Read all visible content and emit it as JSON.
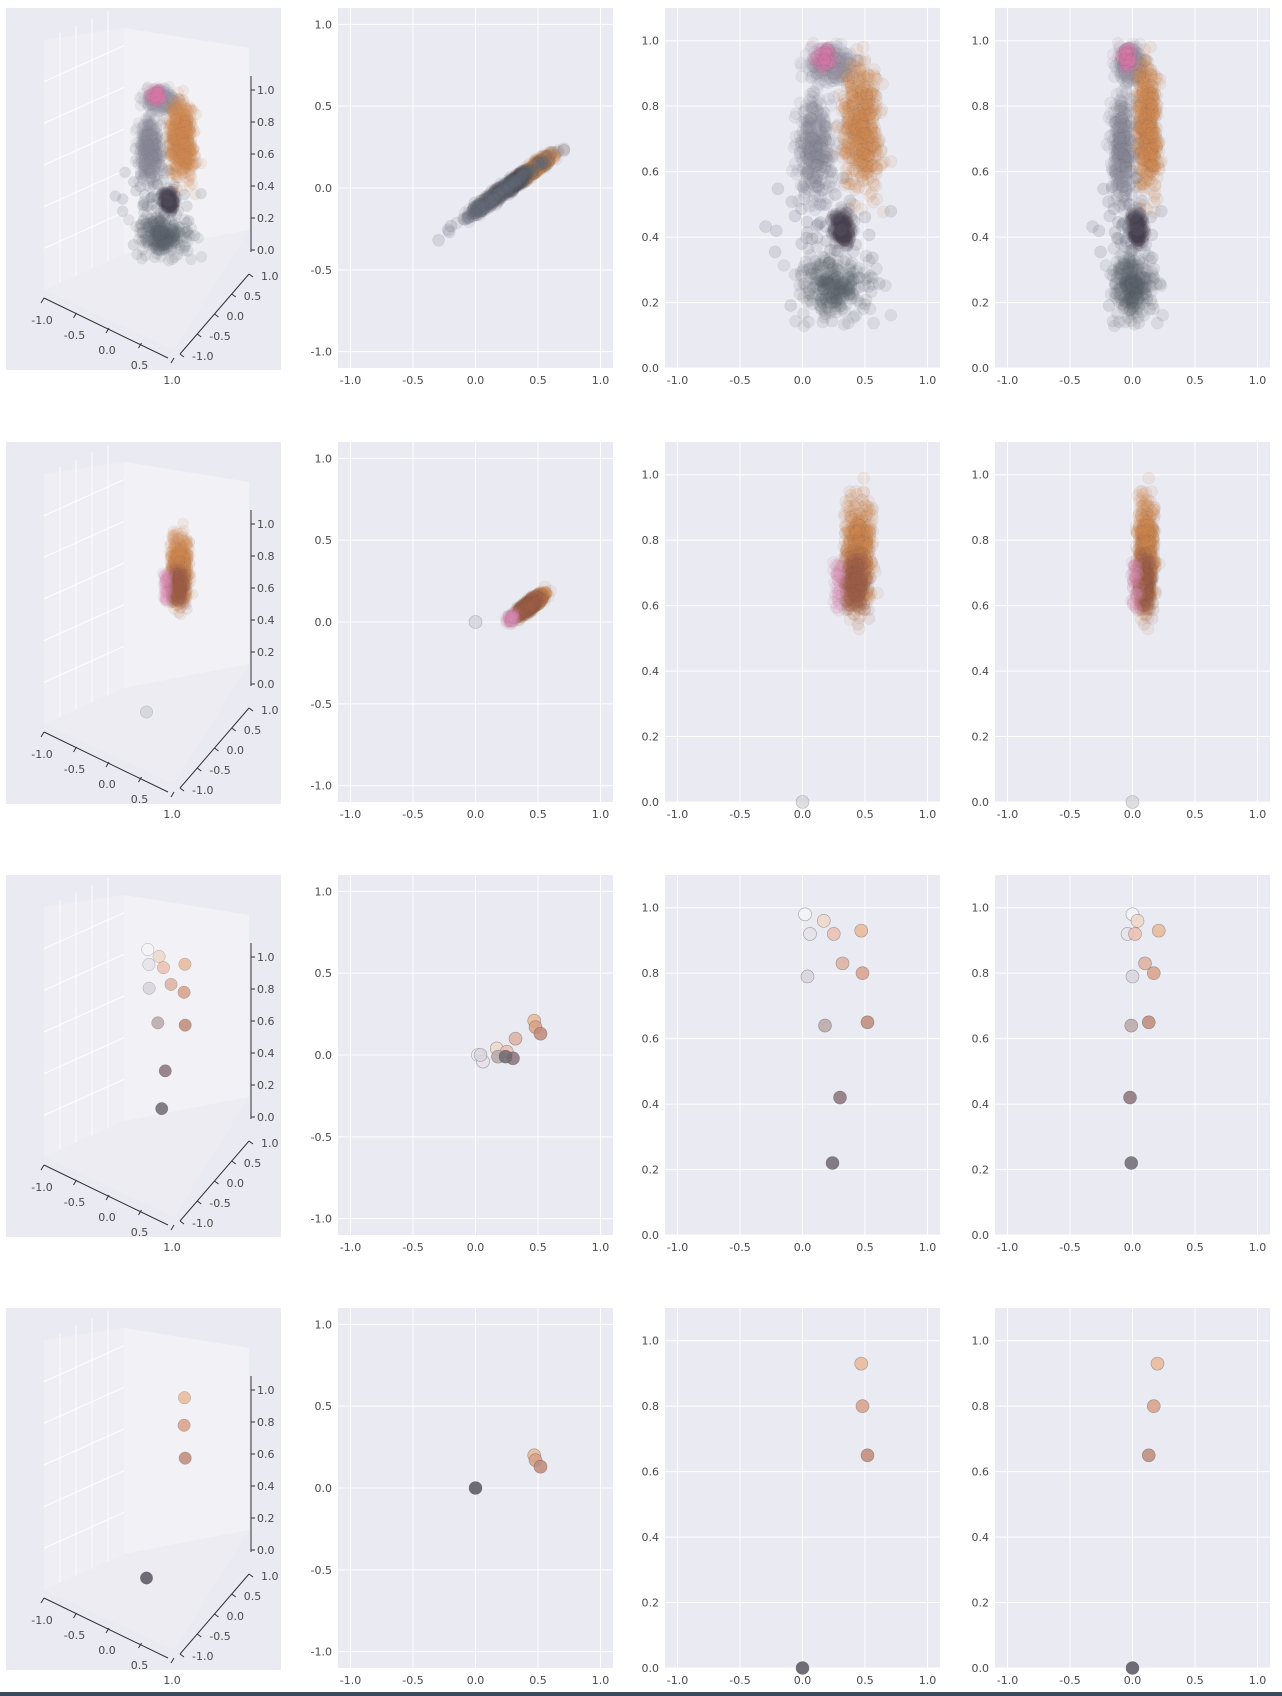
{
  "colors": {
    "plot_bg": "#eaeaf2",
    "grid": "#ffffff",
    "tick_text": "#4a4a4a",
    "orange": "#e0904e",
    "brown": "#b06e55",
    "dark": "#4a4550",
    "slate": "#606878",
    "pink": "#e07cb0",
    "pale": "#dcdce4"
  },
  "chart_data": [
    {
      "type": "scatter",
      "row": 1,
      "cloud": true,
      "regions": [
        {
          "name": "top-band",
          "x": [
            -0.05,
            0.5
          ],
          "y": [
            0.85,
            1.0
          ],
          "n": 260,
          "color": "#9aa0b0"
        },
        {
          "name": "orange-body",
          "x": [
            0.25,
            0.7
          ],
          "y": [
            0.45,
            1.0
          ],
          "n": 520,
          "color": "#d98a52"
        },
        {
          "name": "pink-patch",
          "x": [
            0.05,
            0.3
          ],
          "y": [
            0.9,
            1.0
          ],
          "n": 60,
          "color": "#e07cb0"
        },
        {
          "name": "dark-core",
          "x": [
            0.2,
            0.45
          ],
          "y": [
            0.35,
            0.5
          ],
          "n": 160,
          "color": "#4a4550"
        },
        {
          "name": "grey-column",
          "x": [
            -0.1,
            0.3
          ],
          "y": [
            0.45,
            0.9
          ],
          "n": 320,
          "color": "#8a8f9c"
        },
        {
          "name": "grey-tail",
          "x": [
            -0.15,
            0.7
          ],
          "y": [
            0.1,
            0.4
          ],
          "n": 260,
          "color": "#5a5f6c"
        },
        {
          "name": "outliers",
          "x": [
            -0.55,
            0.85
          ],
          "y": [
            0.1,
            0.7
          ],
          "n": 40,
          "color": "#6a7080"
        }
      ],
      "xlim": [
        -1.1,
        1.1
      ],
      "ylim": [
        0,
        1.1
      ]
    },
    {
      "type": "scatter",
      "row": 2,
      "cloud": true,
      "regions": [
        {
          "name": "orange-body",
          "x": [
            0.3,
            0.6
          ],
          "y": [
            0.52,
            1.0
          ],
          "n": 600,
          "color": "#d98a52"
        },
        {
          "name": "brown-core",
          "x": [
            0.3,
            0.55
          ],
          "y": [
            0.55,
            0.8
          ],
          "n": 260,
          "color": "#a8644c"
        },
        {
          "name": "pink-fringe",
          "x": [
            0.22,
            0.35
          ],
          "y": [
            0.55,
            0.8
          ],
          "n": 40,
          "color": "#e089b6"
        }
      ],
      "extra_points": [
        {
          "x": 0.0,
          "y": 0.0,
          "z": 0.0,
          "color": "#c8c8d0"
        }
      ],
      "xlim": [
        -1.1,
        1.1
      ],
      "ylim": [
        0,
        1.1
      ]
    },
    {
      "type": "scatter",
      "row": 3,
      "cloud": false,
      "points": [
        {
          "x": 0.02,
          "y": 0.0,
          "z": 0.98,
          "color": "#f4f4f7"
        },
        {
          "x": 0.17,
          "y": 0.04,
          "z": 0.96,
          "color": "#f0d8c8"
        },
        {
          "x": 0.06,
          "y": -0.04,
          "z": 0.92,
          "color": "#e6e2ea"
        },
        {
          "x": 0.25,
          "y": 0.02,
          "z": 0.92,
          "color": "#ecc0b0"
        },
        {
          "x": 0.47,
          "y": 0.21,
          "z": 0.93,
          "color": "#e8b898"
        },
        {
          "x": 0.32,
          "y": 0.1,
          "z": 0.83,
          "color": "#dcb0a0"
        },
        {
          "x": 0.04,
          "y": 0.0,
          "z": 0.79,
          "color": "#d8d4de"
        },
        {
          "x": 0.48,
          "y": 0.17,
          "z": 0.8,
          "color": "#d8a088"
        },
        {
          "x": 0.18,
          "y": -0.01,
          "z": 0.64,
          "color": "#b8a8a8"
        },
        {
          "x": 0.52,
          "y": 0.13,
          "z": 0.65,
          "color": "#c08a78"
        },
        {
          "x": 0.3,
          "y": -0.02,
          "z": 0.42,
          "color": "#8a7278"
        },
        {
          "x": 0.24,
          "y": -0.01,
          "z": 0.22,
          "color": "#6e6870"
        }
      ],
      "xlim": [
        -1.1,
        1.1
      ],
      "ylim": [
        0,
        1.1
      ]
    },
    {
      "type": "scatter",
      "row": 4,
      "cloud": false,
      "points": [
        {
          "x": 0.47,
          "y": 0.2,
          "z": 0.93,
          "color": "#e8b898"
        },
        {
          "x": 0.48,
          "y": 0.17,
          "z": 0.8,
          "color": "#d8a088"
        },
        {
          "x": 0.52,
          "y": 0.13,
          "z": 0.65,
          "color": "#c08a78"
        },
        {
          "x": 0.0,
          "y": 0.0,
          "z": 0.0,
          "color": "#585460"
        }
      ],
      "xlim": [
        -1.1,
        1.1
      ],
      "ylim": [
        0,
        1.1
      ]
    }
  ],
  "axes": {
    "x_ticks": [
      "-1.0",
      "-0.5",
      "0.0",
      "0.5",
      "1.0"
    ],
    "y_sym_ticks": [
      "1.0",
      "0.5",
      "0.0",
      "-0.5",
      "-1.0"
    ],
    "y_pos_ticks": [
      "1.0",
      "0.8",
      "0.6",
      "0.4",
      "0.2",
      "0.0"
    ],
    "ax3d_x_ticks": [
      "-1.0",
      "-0.5",
      "0.0",
      "0.5",
      "1.0"
    ],
    "ax3d_y_ticks": [
      "1.0",
      "0.5",
      "0.0",
      "-0.5",
      "-1.0"
    ],
    "ax3d_z_ticks": [
      "1.0",
      "0.8",
      "0.6",
      "0.4",
      "0.2",
      "0.0"
    ]
  }
}
